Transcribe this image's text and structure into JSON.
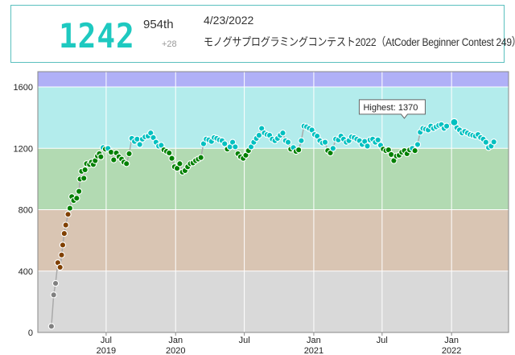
{
  "header": {
    "rating": "1242",
    "rank": "954th",
    "delta": "+28",
    "date": "4/23/2022",
    "contest": "モノグサプログラミングコンテスト2022（AtCoder Beginner Contest 249）"
  },
  "tooltip": "Highest: 1370",
  "colors": {
    "accent": "#1ec9c0",
    "bands": [
      "#d9d9d9",
      "#d9c5b3",
      "#b2dab2",
      "#b3ecec",
      "#b0b0f7"
    ]
  },
  "chart_data": {
    "type": "scatter",
    "ylim": [
      0,
      1700
    ],
    "xlim": [
      "2019-01-01",
      "2022-06-01"
    ],
    "yticks": [
      0,
      400,
      800,
      1200,
      1600
    ],
    "xticks": [
      {
        "date": "2019-07-01",
        "label": "Jul",
        "year": "2019"
      },
      {
        "date": "2020-01-01",
        "label": "Jan",
        "year": "2020"
      },
      {
        "date": "2020-07-01",
        "label": "Jul",
        "year": ""
      },
      {
        "date": "2021-01-01",
        "label": "Jan",
        "year": "2021"
      },
      {
        "date": "2021-07-01",
        "label": "Jul",
        "year": ""
      },
      {
        "date": "2022-01-01",
        "label": "Jan",
        "year": "2022"
      }
    ],
    "grid": true,
    "highest": {
      "date": "2022-01-08",
      "value": 1370
    },
    "points": [
      [
        "2019-02-06",
        40
      ],
      [
        "2019-02-12",
        245
      ],
      [
        "2019-02-17",
        320
      ],
      [
        "2019-02-23",
        455
      ],
      [
        "2019-03-01",
        425
      ],
      [
        "2019-03-05",
        505
      ],
      [
        "2019-03-08",
        570
      ],
      [
        "2019-03-12",
        645
      ],
      [
        "2019-03-16",
        700
      ],
      [
        "2019-03-22",
        770
      ],
      [
        "2019-03-27",
        810
      ],
      [
        "2019-04-01",
        885
      ],
      [
        "2019-04-06",
        860
      ],
      [
        "2019-04-14",
        875
      ],
      [
        "2019-04-20",
        920
      ],
      [
        "2019-04-23",
        1000
      ],
      [
        "2019-04-27",
        1050
      ],
      [
        "2019-05-03",
        1005
      ],
      [
        "2019-05-06",
        1060
      ],
      [
        "2019-05-10",
        1100
      ],
      [
        "2019-05-18",
        1095
      ],
      [
        "2019-05-23",
        1110
      ],
      [
        "2019-05-28",
        1095
      ],
      [
        "2019-06-02",
        1120
      ],
      [
        "2019-06-08",
        1150
      ],
      [
        "2019-06-13",
        1165
      ],
      [
        "2019-06-17",
        1145
      ],
      [
        "2019-06-23",
        1205
      ],
      [
        "2019-06-29",
        1195
      ],
      [
        "2019-07-06",
        1200
      ],
      [
        "2019-07-14",
        1175
      ],
      [
        "2019-07-21",
        1125
      ],
      [
        "2019-07-28",
        1170
      ],
      [
        "2019-08-04",
        1145
      ],
      [
        "2019-08-11",
        1130
      ],
      [
        "2019-08-17",
        1110
      ],
      [
        "2019-08-24",
        1100
      ],
      [
        "2019-08-31",
        1165
      ],
      [
        "2019-09-07",
        1265
      ],
      [
        "2019-09-14",
        1245
      ],
      [
        "2019-09-21",
        1260
      ],
      [
        "2019-09-28",
        1225
      ],
      [
        "2019-10-05",
        1260
      ],
      [
        "2019-10-12",
        1275
      ],
      [
        "2019-10-20",
        1280
      ],
      [
        "2019-10-27",
        1300
      ],
      [
        "2019-11-03",
        1270
      ],
      [
        "2019-11-10",
        1240
      ],
      [
        "2019-11-17",
        1215
      ],
      [
        "2019-11-24",
        1220
      ],
      [
        "2019-12-01",
        1190
      ],
      [
        "2019-12-08",
        1180
      ],
      [
        "2019-12-15",
        1170
      ],
      [
        "2019-12-22",
        1135
      ],
      [
        "2019-12-29",
        1080
      ],
      [
        "2020-01-05",
        1070
      ],
      [
        "2020-01-12",
        1100
      ],
      [
        "2020-01-19",
        1045
      ],
      [
        "2020-01-26",
        1055
      ],
      [
        "2020-02-02",
        1080
      ],
      [
        "2020-02-09",
        1100
      ],
      [
        "2020-02-16",
        1105
      ],
      [
        "2020-02-23",
        1120
      ],
      [
        "2020-03-01",
        1130
      ],
      [
        "2020-03-08",
        1140
      ],
      [
        "2020-03-15",
        1230
      ],
      [
        "2020-03-22",
        1260
      ],
      [
        "2020-03-29",
        1255
      ],
      [
        "2020-04-05",
        1245
      ],
      [
        "2020-04-12",
        1270
      ],
      [
        "2020-04-19",
        1265
      ],
      [
        "2020-04-26",
        1255
      ],
      [
        "2020-05-03",
        1250
      ],
      [
        "2020-05-10",
        1230
      ],
      [
        "2020-05-17",
        1195
      ],
      [
        "2020-05-24",
        1210
      ],
      [
        "2020-05-31",
        1240
      ],
      [
        "2020-06-07",
        1210
      ],
      [
        "2020-06-14",
        1165
      ],
      [
        "2020-06-21",
        1145
      ],
      [
        "2020-06-28",
        1135
      ],
      [
        "2020-07-05",
        1155
      ],
      [
        "2020-07-12",
        1185
      ],
      [
        "2020-07-19",
        1210
      ],
      [
        "2020-07-26",
        1240
      ],
      [
        "2020-08-02",
        1265
      ],
      [
        "2020-08-09",
        1285
      ],
      [
        "2020-08-16",
        1330
      ],
      [
        "2020-08-23",
        1300
      ],
      [
        "2020-08-30",
        1290
      ],
      [
        "2020-09-06",
        1285
      ],
      [
        "2020-09-13",
        1260
      ],
      [
        "2020-09-20",
        1250
      ],
      [
        "2020-09-27",
        1265
      ],
      [
        "2020-10-04",
        1285
      ],
      [
        "2020-10-11",
        1300
      ],
      [
        "2020-10-18",
        1250
      ],
      [
        "2020-10-25",
        1240
      ],
      [
        "2020-11-01",
        1195
      ],
      [
        "2020-11-08",
        1205
      ],
      [
        "2020-11-15",
        1180
      ],
      [
        "2020-11-22",
        1190
      ],
      [
        "2020-11-29",
        1250
      ],
      [
        "2020-12-06",
        1345
      ],
      [
        "2020-12-13",
        1340
      ],
      [
        "2020-12-20",
        1330
      ],
      [
        "2020-12-27",
        1320
      ],
      [
        "2021-01-03",
        1290
      ],
      [
        "2021-01-10",
        1280
      ],
      [
        "2021-01-17",
        1250
      ],
      [
        "2021-01-24",
        1235
      ],
      [
        "2021-01-31",
        1240
      ],
      [
        "2021-02-07",
        1185
      ],
      [
        "2021-02-14",
        1170
      ],
      [
        "2021-02-21",
        1200
      ],
      [
        "2021-02-28",
        1260
      ],
      [
        "2021-03-07",
        1255
      ],
      [
        "2021-03-14",
        1280
      ],
      [
        "2021-03-21",
        1260
      ],
      [
        "2021-03-28",
        1240
      ],
      [
        "2021-04-04",
        1250
      ],
      [
        "2021-04-11",
        1275
      ],
      [
        "2021-04-18",
        1270
      ],
      [
        "2021-04-25",
        1260
      ],
      [
        "2021-05-02",
        1250
      ],
      [
        "2021-05-09",
        1225
      ],
      [
        "2021-05-16",
        1245
      ],
      [
        "2021-05-23",
        1215
      ],
      [
        "2021-05-30",
        1255
      ],
      [
        "2021-06-06",
        1260
      ],
      [
        "2021-06-13",
        1240
      ],
      [
        "2021-06-20",
        1255
      ],
      [
        "2021-06-27",
        1220
      ],
      [
        "2021-07-04",
        1195
      ],
      [
        "2021-07-11",
        1185
      ],
      [
        "2021-07-18",
        1190
      ],
      [
        "2021-07-25",
        1160
      ],
      [
        "2021-08-01",
        1120
      ],
      [
        "2021-08-08",
        1150
      ],
      [
        "2021-08-15",
        1155
      ],
      [
        "2021-08-22",
        1175
      ],
      [
        "2021-08-29",
        1185
      ],
      [
        "2021-09-05",
        1165
      ],
      [
        "2021-09-12",
        1190
      ],
      [
        "2021-09-19",
        1200
      ],
      [
        "2021-09-26",
        1185
      ],
      [
        "2021-10-03",
        1225
      ],
      [
        "2021-10-10",
        1305
      ],
      [
        "2021-10-17",
        1330
      ],
      [
        "2021-10-24",
        1325
      ],
      [
        "2021-10-31",
        1320
      ],
      [
        "2021-11-07",
        1345
      ],
      [
        "2021-11-14",
        1330
      ],
      [
        "2021-11-21",
        1340
      ],
      [
        "2021-11-28",
        1350
      ],
      [
        "2021-12-05",
        1355
      ],
      [
        "2021-12-12",
        1330
      ],
      [
        "2021-12-19",
        1345
      ],
      [
        "2022-01-08",
        1370
      ],
      [
        "2022-01-15",
        1335
      ],
      [
        "2022-01-22",
        1320
      ],
      [
        "2022-01-29",
        1300
      ],
      [
        "2022-02-05",
        1310
      ],
      [
        "2022-02-12",
        1300
      ],
      [
        "2022-02-19",
        1290
      ],
      [
        "2022-02-26",
        1285
      ],
      [
        "2022-03-05",
        1280
      ],
      [
        "2022-03-12",
        1290
      ],
      [
        "2022-03-19",
        1270
      ],
      [
        "2022-03-26",
        1260
      ],
      [
        "2022-04-02",
        1240
      ],
      [
        "2022-04-09",
        1205
      ],
      [
        "2022-04-16",
        1215
      ],
      [
        "2022-04-23",
        1242
      ]
    ]
  }
}
